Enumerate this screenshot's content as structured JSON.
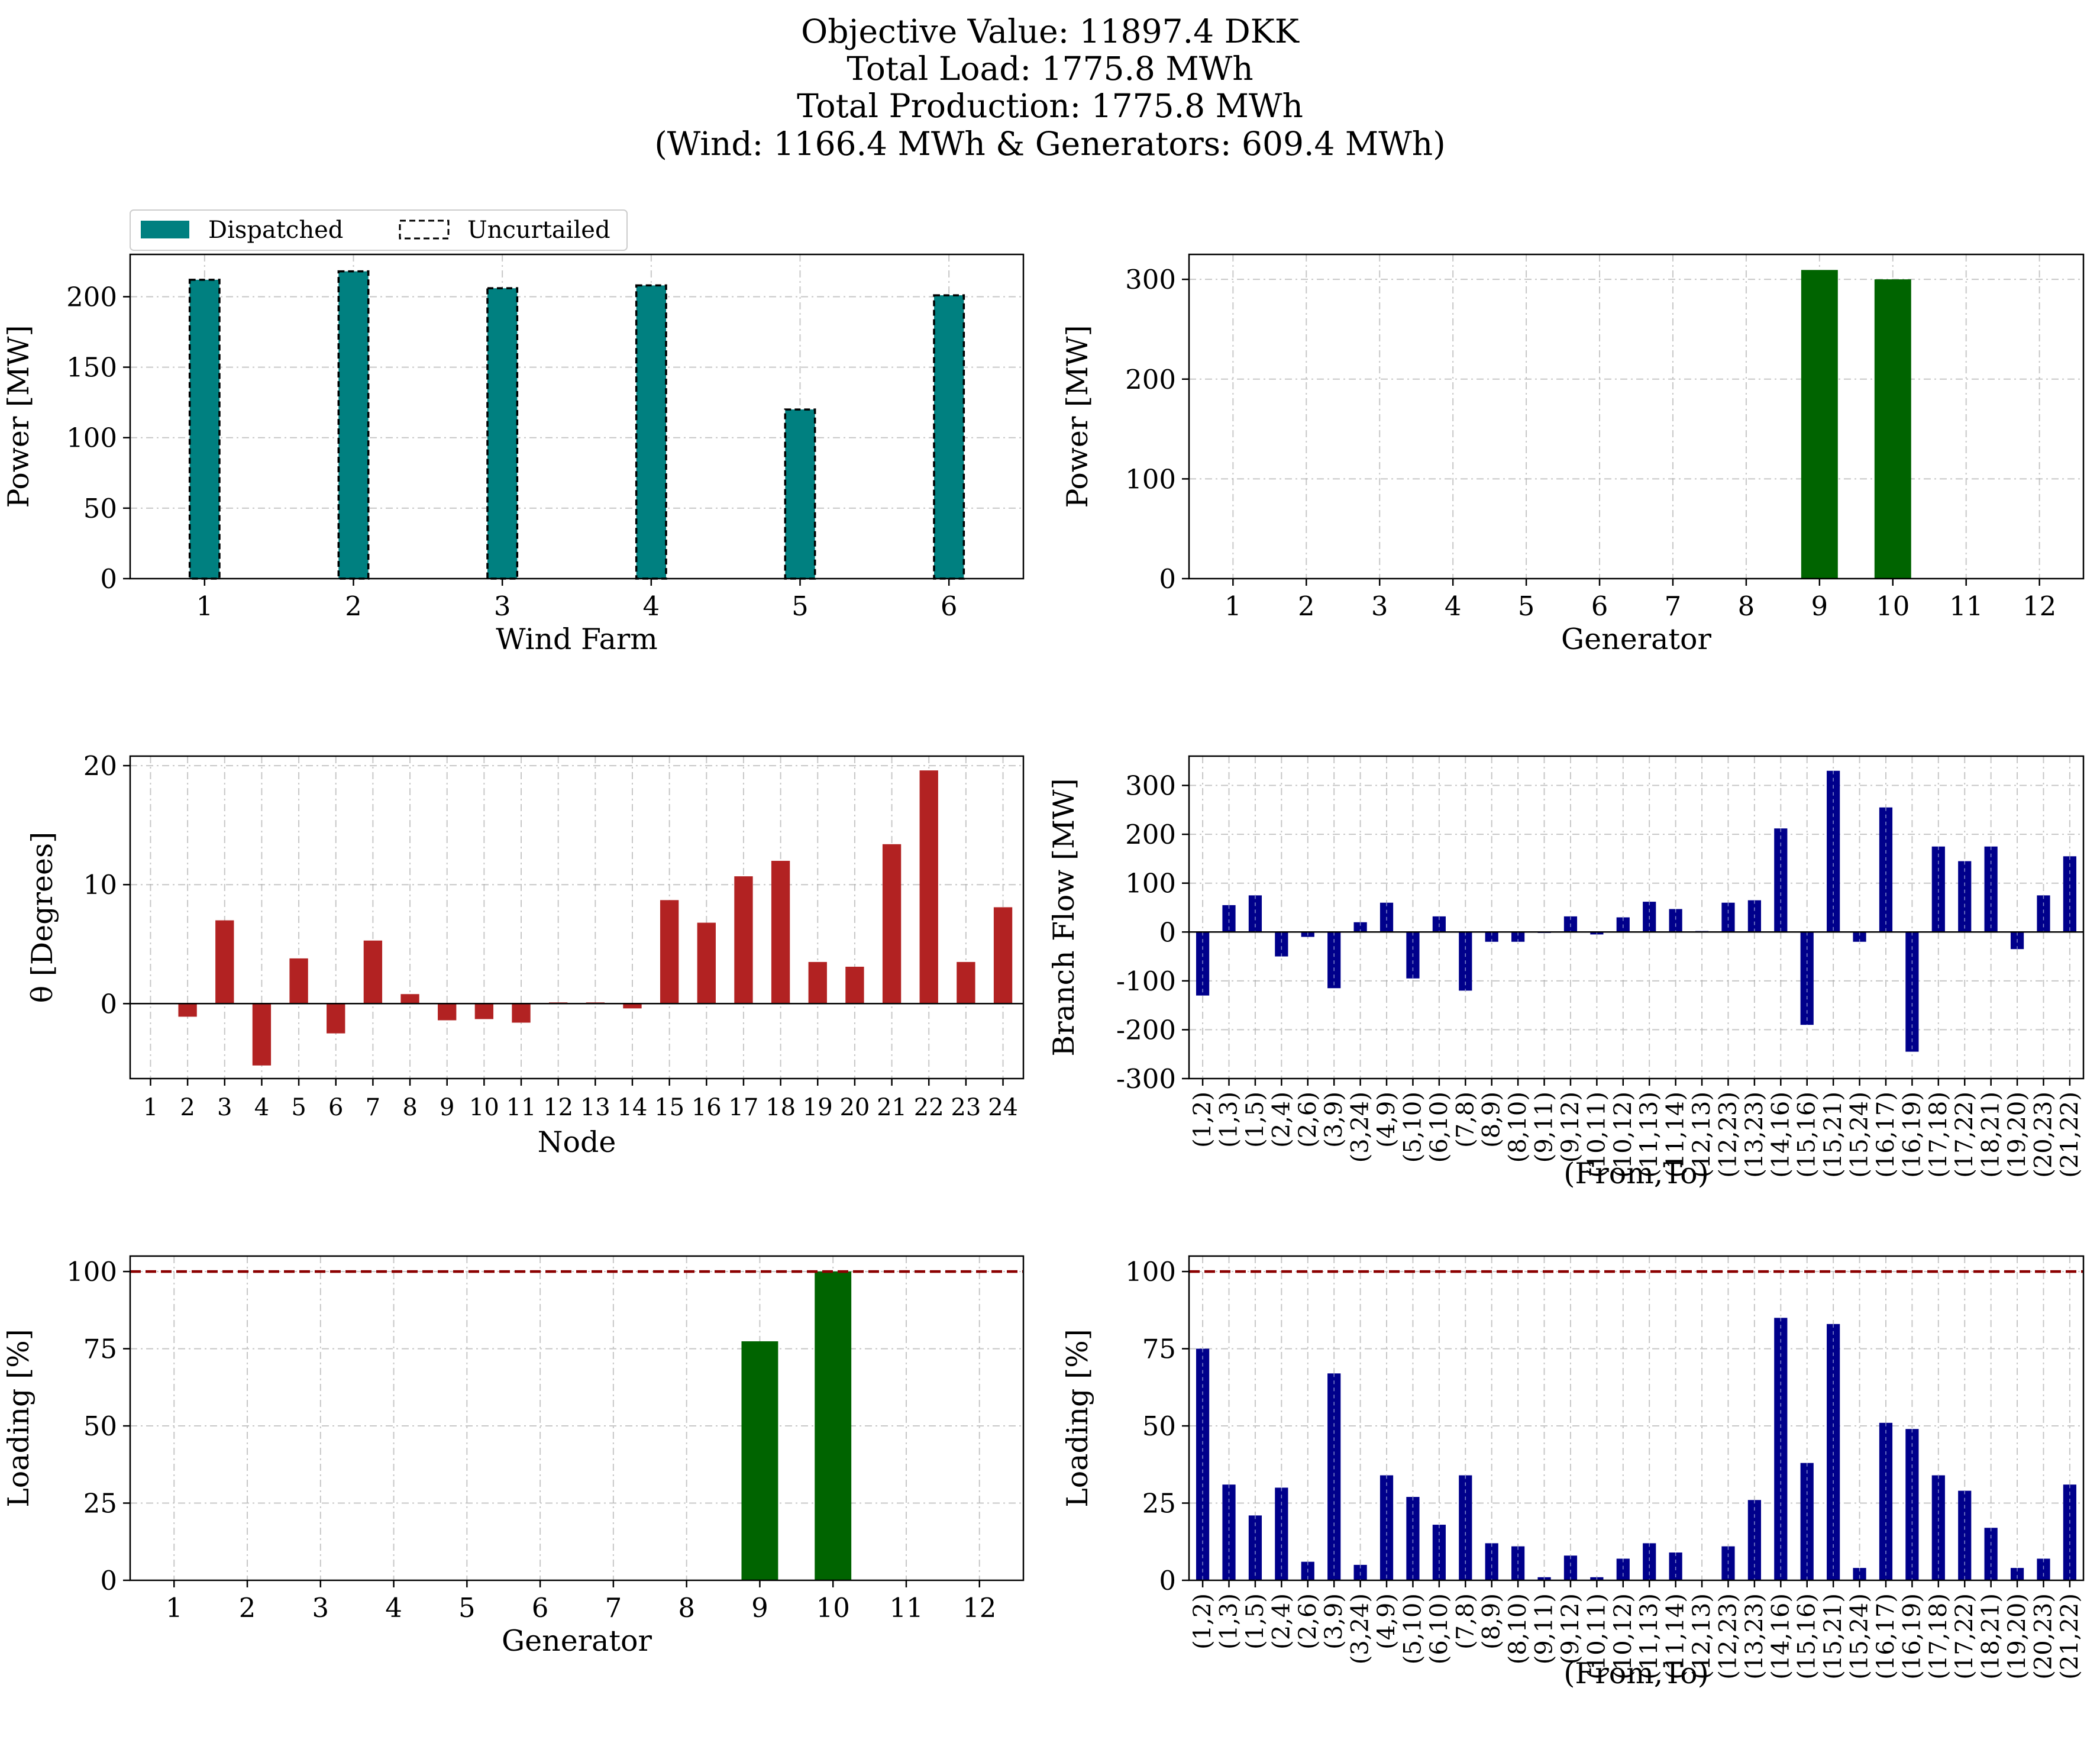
{
  "title_lines": [
    "Objective Value: 11897.4 DKK",
    "Total Load: 1775.8 MWh",
    "Total Production: 1775.8 MWh",
    "(Wind: 1166.4 MWh & Generators: 609.4 MWh)"
  ],
  "colors": {
    "wind": "#008080",
    "generator": "#006400",
    "angle": "#b22222",
    "branch": "#00008b",
    "limit": "#8b0000"
  },
  "chart_data": [
    {
      "id": "wind",
      "type": "bar",
      "xlabel": "Wind Farm",
      "ylabel": "Power [MW]",
      "categories": [
        "1",
        "2",
        "3",
        "4",
        "5",
        "6"
      ],
      "series": [
        {
          "name": "Dispatched",
          "values": [
            212,
            218,
            206,
            208,
            120,
            201
          ]
        },
        {
          "name": "Uncurtailed",
          "values": [
            212,
            218,
            206,
            208,
            120,
            201
          ]
        }
      ],
      "legend": [
        "Dispatched",
        "Uncurtailed"
      ],
      "legend_position": "top-left, above plot",
      "ylim": [
        0,
        230
      ],
      "yticks": [
        0,
        50,
        100,
        150,
        200
      ],
      "grid": true
    },
    {
      "id": "gen",
      "type": "bar",
      "xlabel": "Generator",
      "ylabel": "Power [MW]",
      "categories": [
        "1",
        "2",
        "3",
        "4",
        "5",
        "6",
        "7",
        "8",
        "9",
        "10",
        "11",
        "12"
      ],
      "values": [
        0,
        0,
        0,
        0,
        0,
        0,
        0,
        0,
        309.4,
        300,
        0,
        0
      ],
      "ylim": [
        0,
        325
      ],
      "yticks": [
        0,
        100,
        200,
        300
      ],
      "grid": true
    },
    {
      "id": "theta",
      "type": "bar",
      "xlabel": "Node",
      "ylabel": "θ [Degrees]",
      "categories": [
        "1",
        "2",
        "3",
        "4",
        "5",
        "6",
        "7",
        "8",
        "9",
        "10",
        "11",
        "12",
        "13",
        "14",
        "15",
        "16",
        "17",
        "18",
        "19",
        "20",
        "21",
        "22",
        "23",
        "24"
      ],
      "values": [
        0,
        -1.1,
        7.0,
        -5.2,
        3.8,
        -2.5,
        5.3,
        0.8,
        -1.4,
        -1.3,
        -1.6,
        0.1,
        0.1,
        -0.4,
        8.7,
        6.8,
        10.7,
        12.0,
        3.5,
        3.1,
        13.4,
        19.6,
        3.5,
        8.1
      ],
      "ylim": [
        -6.3,
        20.8
      ],
      "yticks": [
        0,
        10,
        20
      ],
      "grid": true
    },
    {
      "id": "flow",
      "type": "bar",
      "xlabel": "(From,To)",
      "ylabel": "Branch Flow [MW]",
      "categories": [
        "(1,2)",
        "(1,3)",
        "(1,5)",
        "(2,4)",
        "(2,6)",
        "(3,9)",
        "(3,24)",
        "(4,9)",
        "(5,10)",
        "(6,10)",
        "(7,8)",
        "(8,9)",
        "(8,10)",
        "(9,11)",
        "(9,12)",
        "(10,11)",
        "(10,12)",
        "(11,13)",
        "(11,14)",
        "(12,13)",
        "(12,23)",
        "(13,23)",
        "(14,16)",
        "(15,16)",
        "(15,21)",
        "(15,24)",
        "(16,17)",
        "(16,19)",
        "(17,18)",
        "(17,22)",
        "(18,21)",
        "(19,20)",
        "(20,23)",
        "(21,22)"
      ],
      "values": [
        -130,
        55,
        75,
        -50,
        -10,
        -115,
        20,
        60,
        -95,
        32,
        -120,
        -20,
        -20,
        -2,
        32,
        -5,
        30,
        62,
        47,
        2,
        60,
        65,
        212,
        -190,
        330,
        -20,
        255,
        -245,
        175,
        145,
        175,
        -35,
        75,
        155
      ],
      "ylim": [
        -300,
        360
      ],
      "yticks": [
        -300,
        -200,
        -100,
        0,
        100,
        200,
        300
      ],
      "grid": true
    },
    {
      "id": "genload",
      "type": "bar",
      "xlabel": "Generator",
      "ylabel": "Loading [%]",
      "categories": [
        "1",
        "2",
        "3",
        "4",
        "5",
        "6",
        "7",
        "8",
        "9",
        "10",
        "11",
        "12"
      ],
      "values": [
        0,
        0,
        0,
        0,
        0,
        0,
        0,
        0,
        77.4,
        100,
        0,
        0
      ],
      "limit_line": 100,
      "ylim": [
        0,
        105
      ],
      "yticks": [
        0,
        25,
        50,
        75,
        100
      ],
      "grid": true
    },
    {
      "id": "lineload",
      "type": "bar",
      "xlabel": "(From,To)",
      "ylabel": "Loading [%]",
      "categories": [
        "(1,2)",
        "(1,3)",
        "(1,5)",
        "(2,4)",
        "(2,6)",
        "(3,9)",
        "(3,24)",
        "(4,9)",
        "(5,10)",
        "(6,10)",
        "(7,8)",
        "(8,9)",
        "(8,10)",
        "(9,11)",
        "(9,12)",
        "(10,11)",
        "(10,12)",
        "(11,13)",
        "(11,14)",
        "(12,13)",
        "(12,23)",
        "(13,23)",
        "(14,16)",
        "(15,16)",
        "(15,21)",
        "(15,24)",
        "(16,17)",
        "(16,19)",
        "(17,18)",
        "(17,22)",
        "(18,21)",
        "(19,20)",
        "(20,23)",
        "(21,22)"
      ],
      "values": [
        75,
        31,
        21,
        30,
        6,
        67,
        5,
        34,
        27,
        18,
        34,
        12,
        11,
        1,
        8,
        1,
        7,
        12,
        9,
        0,
        11,
        26,
        85,
        38,
        83,
        4,
        51,
        49,
        34,
        29,
        17,
        4,
        7,
        31
      ],
      "limit_line": 100,
      "ylim": [
        0,
        105
      ],
      "yticks": [
        0,
        25,
        50,
        75,
        100
      ],
      "grid": true
    }
  ]
}
